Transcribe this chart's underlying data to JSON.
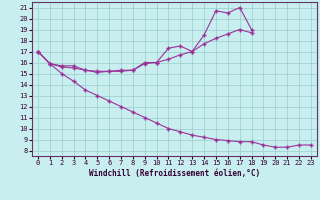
{
  "xlabel": "Windchill (Refroidissement éolien,°C)",
  "bg_color": "#c8eef0",
  "grid_color": "#99cccc",
  "line_color": "#993399",
  "xlim": [
    -0.5,
    23.5
  ],
  "ylim": [
    7.5,
    21.5
  ],
  "xticks": [
    0,
    1,
    2,
    3,
    4,
    5,
    6,
    7,
    8,
    9,
    10,
    11,
    12,
    13,
    14,
    15,
    16,
    17,
    18,
    19,
    20,
    21,
    22,
    23
  ],
  "yticks": [
    8,
    9,
    10,
    11,
    12,
    13,
    14,
    15,
    16,
    17,
    18,
    19,
    20,
    21
  ],
  "line1_x": [
    0,
    1,
    2,
    3,
    4,
    5,
    6,
    7,
    8,
    9,
    10,
    11,
    12,
    13,
    14,
    15,
    16,
    17,
    18
  ],
  "line1_y": [
    17.0,
    15.9,
    15.7,
    15.7,
    15.3,
    15.2,
    15.2,
    15.3,
    15.3,
    16.0,
    16.0,
    17.3,
    17.5,
    17.0,
    18.5,
    20.7,
    20.5,
    21.0,
    19.0
  ],
  "line2_x": [
    0,
    1,
    2,
    3,
    4,
    5,
    6,
    7,
    8,
    9,
    10,
    11,
    12,
    13,
    14,
    15,
    16,
    17,
    18
  ],
  "line2_y": [
    17.0,
    15.9,
    15.6,
    15.5,
    15.3,
    15.1,
    15.2,
    15.2,
    15.3,
    15.9,
    16.0,
    16.3,
    16.7,
    17.0,
    17.7,
    18.2,
    18.6,
    19.0,
    18.7
  ],
  "line3_x": [
    0,
    1,
    2,
    3,
    4,
    5,
    6,
    7,
    8,
    9,
    10,
    11,
    12,
    13,
    14,
    15,
    16,
    17,
    18,
    19,
    20,
    21,
    22,
    23
  ],
  "line3_y": [
    17.0,
    15.9,
    15.0,
    14.3,
    13.5,
    13.0,
    12.5,
    12.0,
    11.5,
    11.0,
    10.5,
    10.0,
    9.7,
    9.4,
    9.2,
    9.0,
    8.9,
    8.8,
    8.8,
    8.5,
    8.3,
    8.3,
    8.5,
    8.5
  ]
}
